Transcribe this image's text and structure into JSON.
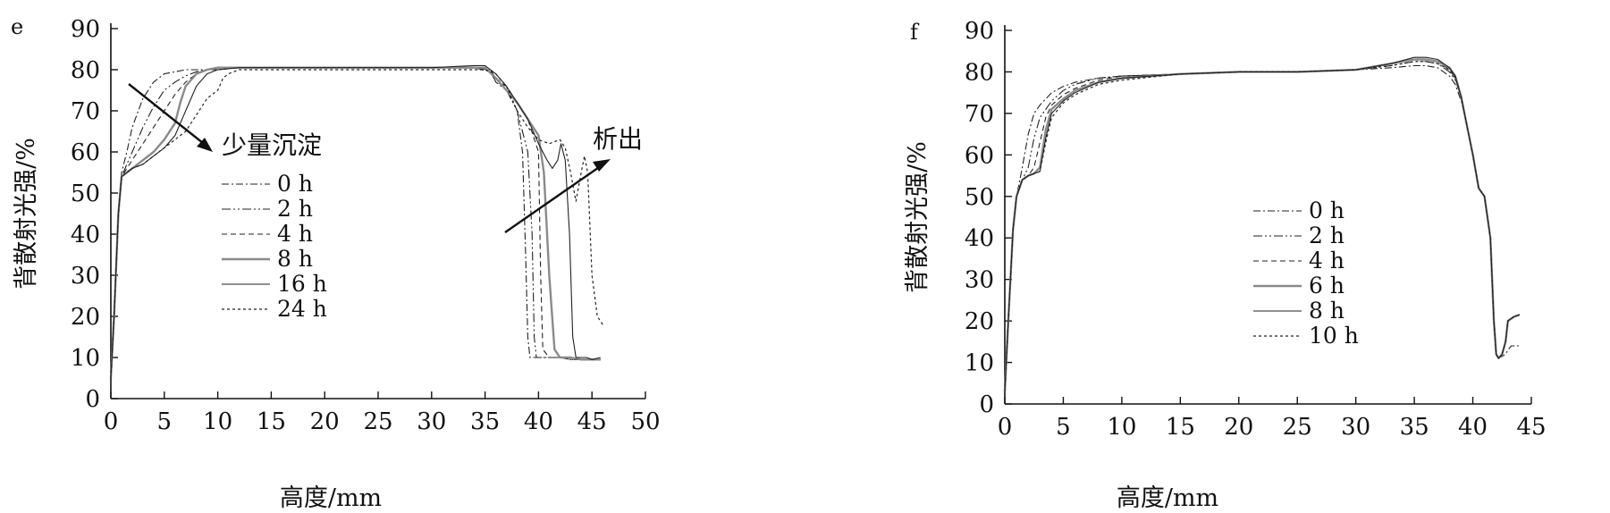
{
  "chart_data": [
    {
      "type": "line",
      "panel_label": "e",
      "xlabel": "高度/mm",
      "ylabel": "背散射光强/%",
      "xlim": [
        0,
        50
      ],
      "ylim": [
        0,
        90
      ],
      "xticks": [
        "0",
        "5",
        "10",
        "15",
        "20",
        "25",
        "30",
        "35",
        "40",
        "45",
        "50"
      ],
      "yticks": [
        "0",
        "10",
        "20",
        "30",
        "40",
        "50",
        "60",
        "70",
        "80",
        "90"
      ],
      "grid": false,
      "legend_position": "center-left",
      "annotations": [
        {
          "text": "少量沉淀",
          "arrow": "down-right"
        },
        {
          "text": "析出",
          "arrow": "up-right"
        }
      ],
      "series": [
        {
          "name": "0 h",
          "dash": "8,3,2,3",
          "width": 1.1,
          "x": [
            0,
            0.3,
            0.7,
            1,
            1.5,
            2,
            3,
            4,
            5,
            6,
            7,
            8,
            9,
            10,
            12,
            15,
            20,
            25,
            30,
            34,
            35.5,
            36,
            37,
            38,
            38.5,
            38.8,
            39,
            39.2,
            40,
            41,
            42,
            43,
            44,
            45,
            45.8
          ],
          "y": [
            5,
            20,
            45,
            55,
            60,
            66,
            73,
            77,
            79,
            79.5,
            80,
            80,
            80,
            80,
            80.5,
            80.5,
            80.5,
            80.5,
            80.5,
            80.5,
            79.5,
            77,
            76,
            70,
            60,
            35,
            15,
            10,
            10,
            10,
            10,
            9.5,
            9.5,
            9.5,
            9.5
          ]
        },
        {
          "name": "2 h",
          "dash": "10,3,2,3,2,3",
          "width": 1.1,
          "x": [
            0,
            0.3,
            0.7,
            1,
            1.5,
            2,
            3,
            4,
            5,
            6,
            7,
            8,
            9,
            10,
            12,
            15,
            20,
            25,
            30,
            34,
            35.5,
            36,
            37,
            38,
            39,
            39.4,
            39.6,
            39.8,
            40.5,
            41,
            42,
            43,
            44,
            45,
            45.8
          ],
          "y": [
            5,
            20,
            45,
            54,
            57,
            60,
            66,
            71,
            75,
            77,
            78.5,
            79.5,
            80,
            80,
            80.5,
            80.5,
            80.5,
            80.5,
            80.5,
            80.5,
            80,
            77,
            75,
            70,
            60,
            40,
            15,
            10,
            10,
            10,
            10,
            9.5,
            9.5,
            9.5,
            9.5
          ]
        },
        {
          "name": "4 h",
          "dash": "6,4",
          "width": 1.1,
          "x": [
            0,
            0.3,
            0.7,
            1,
            1.5,
            2,
            3,
            4,
            5,
            6,
            7,
            8,
            9,
            10,
            12,
            15,
            20,
            25,
            30,
            34,
            35.5,
            36,
            37,
            38,
            39,
            40,
            40.2,
            40.4,
            41,
            42,
            43,
            44,
            45,
            45.8
          ],
          "y": [
            5,
            20,
            45,
            54,
            56,
            58,
            62,
            66,
            70,
            74,
            77,
            79,
            80,
            80,
            80.5,
            80.5,
            80.5,
            80.5,
            80.5,
            80.5,
            80,
            78,
            76,
            72,
            68,
            60,
            30,
            12,
            10,
            10,
            10,
            9.5,
            9.5,
            9.5
          ]
        },
        {
          "name": "8 h",
          "dash": "",
          "width": 2.4,
          "color": "#8a8a8a",
          "x": [
            0,
            0.3,
            0.7,
            1,
            1.5,
            2,
            3,
            4,
            5,
            6,
            6.5,
            7,
            8,
            9,
            10,
            12,
            15,
            20,
            25,
            30,
            34,
            35,
            36,
            37,
            38,
            39,
            40,
            40.5,
            41,
            41.5,
            42,
            42.5,
            43,
            44,
            45,
            45.8
          ],
          "y": [
            5,
            20,
            45,
            54,
            55,
            56,
            58,
            60,
            63,
            67,
            72,
            76,
            79,
            80,
            80.5,
            80.5,
            80.5,
            80.5,
            80.5,
            80.5,
            80.5,
            80.5,
            78,
            75,
            72,
            68,
            64,
            55,
            30,
            12,
            10,
            10,
            10,
            9.5,
            9.5,
            9.5
          ]
        },
        {
          "name": "16 h",
          "dash": "",
          "width": 1.1,
          "x": [
            0,
            0.3,
            0.7,
            1,
            1.5,
            2,
            3,
            4,
            5,
            6,
            7,
            8,
            9,
            10,
            12,
            15,
            20,
            25,
            30,
            34,
            35,
            36,
            37,
            38,
            39,
            40,
            40.8,
            41.3,
            41.8,
            42.1,
            42.5,
            42.9,
            43.2,
            43.5,
            44,
            44.5,
            45,
            45.8
          ],
          "y": [
            5,
            20,
            45,
            54,
            55,
            56,
            57,
            59,
            61,
            64,
            70,
            76,
            79,
            80,
            80.5,
            80.5,
            80.5,
            80.5,
            80.5,
            81,
            81,
            79,
            76,
            72,
            68,
            62,
            58,
            56,
            58,
            62,
            58,
            40,
            15,
            10,
            10,
            10,
            9.5,
            10
          ]
        },
        {
          "name": "24 h",
          "dash": "3,3",
          "width": 1.2,
          "x": [
            0,
            0.3,
            0.7,
            1,
            1.5,
            2,
            3,
            4,
            5,
            6,
            7,
            8,
            9,
            10,
            10.5,
            11,
            12,
            15,
            20,
            25,
            30,
            34,
            35,
            36,
            37,
            38,
            39,
            40,
            41,
            42,
            42.5,
            43,
            43.5,
            44,
            44.3,
            44.6,
            45,
            45.5,
            46
          ],
          "y": [
            5,
            20,
            45,
            54,
            55,
            56,
            57,
            59,
            61,
            63,
            65,
            69,
            73,
            75,
            78,
            79,
            80,
            80,
            80,
            80,
            80,
            80,
            80,
            79,
            76,
            70,
            66,
            63,
            62,
            63,
            61,
            55,
            48,
            55,
            59,
            55,
            30,
            20,
            18
          ]
        }
      ]
    },
    {
      "type": "line",
      "panel_label": "f",
      "xlabel": "高度/mm",
      "ylabel": "背散射光强/%",
      "xlim": [
        0,
        45
      ],
      "ylim": [
        0,
        90
      ],
      "xticks": [
        "0",
        "5",
        "10",
        "15",
        "20",
        "25",
        "30",
        "35",
        "40",
        "45"
      ],
      "yticks": [
        "0",
        "10",
        "20",
        "30",
        "40",
        "50",
        "60",
        "70",
        "80",
        "90"
      ],
      "grid": false,
      "legend_position": "center",
      "series": [
        {
          "name": "0 h",
          "dash": "8,3,2,3",
          "width": 1.1,
          "x": [
            0,
            0.3,
            0.7,
            1,
            1.5,
            2,
            2.5,
            3,
            4,
            5,
            6,
            8,
            10,
            15,
            20,
            25,
            30,
            33,
            35,
            36,
            37,
            38,
            38.5,
            39,
            39.5,
            40,
            40.5,
            41,
            41.5,
            41.8,
            42,
            42.2,
            42.5,
            42.8,
            43,
            43.3,
            44
          ],
          "y": [
            3,
            20,
            42,
            50,
            57,
            65,
            70,
            72,
            75,
            76.5,
            77.5,
            78.5,
            79,
            79.5,
            80,
            80,
            80.5,
            81,
            81.5,
            81.5,
            81,
            79,
            77,
            73,
            67,
            60,
            52,
            50,
            40,
            20,
            12,
            11,
            11.5,
            12,
            13,
            14,
            14
          ]
        },
        {
          "name": "2 h",
          "dash": "10,3,2,3,2,3",
          "width": 1.1,
          "x": [
            0,
            0.3,
            0.7,
            1,
            1.5,
            2,
            2.5,
            3,
            4,
            5,
            6,
            8,
            10,
            15,
            20,
            25,
            30,
            33,
            35,
            36,
            37,
            38,
            38.5,
            39,
            39.5,
            40,
            40.5,
            41,
            41.5,
            41.8,
            42,
            42.2,
            42.5,
            42.8,
            43,
            43.5,
            44
          ],
          "y": [
            3,
            20,
            42,
            50,
            54,
            57,
            64,
            69,
            73,
            75.5,
            77,
            78.5,
            79,
            79.5,
            80,
            80,
            80.5,
            81.5,
            82.5,
            82.5,
            82,
            80,
            78,
            74,
            67,
            60,
            52,
            50,
            40,
            20,
            12,
            11,
            12,
            15,
            20,
            21,
            21.5
          ]
        },
        {
          "name": "4 h",
          "dash": "6,4",
          "width": 1.1,
          "x": [
            0,
            0.3,
            0.7,
            1,
            1.5,
            2,
            2.5,
            3,
            3.5,
            4,
            5,
            6,
            8,
            10,
            15,
            20,
            25,
            30,
            33,
            35,
            36,
            37,
            38,
            38.5,
            39,
            39.5,
            40,
            40.5,
            41,
            41.5,
            41.8,
            42,
            42.2,
            42.5,
            42.8,
            43,
            43.5,
            44
          ],
          "y": [
            3,
            20,
            42,
            50,
            54,
            55,
            57,
            63,
            69,
            72,
            74.5,
            76,
            78,
            79,
            79.5,
            80,
            80,
            80.5,
            82,
            83,
            83,
            82.5,
            80.5,
            78.5,
            74,
            67,
            60,
            52,
            50,
            40,
            20,
            12,
            11,
            12,
            15,
            20,
            21,
            21.5
          ]
        },
        {
          "name": "6 h",
          "dash": "",
          "width": 2.4,
          "color": "#8a8a8a",
          "x": [
            0,
            0.3,
            0.7,
            1,
            1.5,
            2,
            2.5,
            3,
            3.5,
            4,
            5,
            6,
            8,
            10,
            15,
            20,
            25,
            30,
            33,
            35,
            36,
            37,
            38,
            38.5,
            39,
            39.5,
            40,
            40.5,
            41,
            41.5,
            41.8,
            42,
            42.2,
            42.5,
            42.8,
            43,
            43.5,
            44
          ],
          "y": [
            3,
            20,
            42,
            50,
            54,
            55,
            55.5,
            57,
            66,
            71,
            73.5,
            75.5,
            77.5,
            78.5,
            79.5,
            80,
            80,
            80.5,
            82,
            83,
            83,
            82.5,
            81,
            79,
            74,
            67,
            60,
            52,
            50,
            40,
            20,
            12,
            11,
            12,
            15,
            20,
            21,
            21.5
          ]
        },
        {
          "name": "8 h",
          "dash": "",
          "width": 1.1,
          "x": [
            0,
            0.3,
            0.7,
            1,
            1.5,
            2,
            2.5,
            3,
            3.5,
            4,
            5,
            6,
            8,
            10,
            15,
            20,
            25,
            30,
            33,
            35,
            36,
            37,
            38,
            38.5,
            39,
            39.5,
            40,
            40.5,
            41,
            41.5,
            41.8,
            42,
            42.2,
            42.5,
            42.8,
            43,
            43.5,
            44
          ],
          "y": [
            3,
            20,
            42,
            50,
            54,
            55,
            55.5,
            56,
            64,
            70,
            73,
            75,
            77.5,
            78.5,
            79.5,
            80,
            80,
            80.5,
            82,
            83.5,
            83.5,
            83,
            81,
            79,
            74,
            67,
            60,
            52,
            50,
            40,
            20,
            12,
            11,
            12,
            15,
            20,
            21,
            21.5
          ]
        },
        {
          "name": "10 h",
          "dash": "3,3",
          "width": 1.2,
          "x": [
            0,
            0.3,
            0.7,
            1,
            1.5,
            2,
            2.5,
            3,
            3.5,
            4,
            5,
            6,
            8,
            10,
            15,
            20,
            25,
            30,
            33,
            35,
            36,
            37,
            38,
            38.5,
            39,
            39.5,
            40,
            40.5,
            41,
            41.5,
            41.8,
            42,
            42.2,
            42.5,
            42.8,
            43,
            43.5,
            44
          ],
          "y": [
            3,
            20,
            42,
            50,
            54,
            55,
            55.5,
            56,
            63,
            69,
            72.5,
            74.5,
            77,
            78,
            79.5,
            80,
            80,
            80.5,
            81.5,
            82.5,
            82.5,
            82,
            80.5,
            78.5,
            74,
            67,
            60,
            52,
            50,
            40,
            20,
            12,
            11,
            12,
            15,
            20,
            21,
            21.5
          ]
        }
      ]
    }
  ]
}
